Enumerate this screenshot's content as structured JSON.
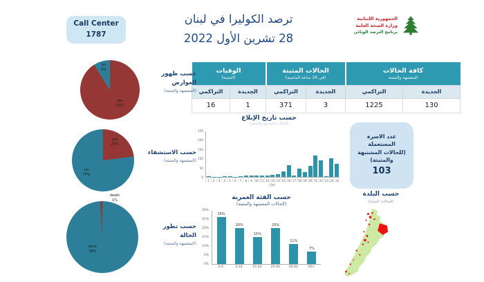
{
  "call_center": {
    "label": "Call Center",
    "number": "1787"
  },
  "title": {
    "line1": "ترصد الكوليرا في لبنان",
    "line2": "28 تشرين الأول 2022"
  },
  "logo": {
    "line1": "الجمهورية اللبنانية",
    "line2": "وزارة الصحة العامة",
    "line3": "برنامج الترصد الوبائي"
  },
  "summary_table": {
    "new_label": "الجديدة",
    "cum_label": "التراكمي",
    "groups": [
      {
        "title": "كافة الحالات",
        "subtitle": "المشتبهة والمثبتة",
        "new": "130",
        "cumulative": "1225"
      },
      {
        "title": "الحالات المثبتة",
        "subtitle": "(في 24 ساعة الماضية)",
        "new": "3",
        "cumulative": "371"
      },
      {
        "title": "الوفيات",
        "subtitle": "(المثبتة)",
        "new": "1",
        "cumulative": "16"
      }
    ]
  },
  "beds_box": {
    "line1": "عدد الاسرة",
    "line2": "المستعملة",
    "line3": "(للحالات المشتبهة",
    "line4": "والمثبتة)",
    "value": "103"
  },
  "map_section": {
    "title": "حسب البلدة",
    "subtitle": "(للحالات المثبتة)"
  },
  "colors": {
    "teal_header": "#2d9ab1",
    "bar_teal": "#2e93a9",
    "pie_red": "#953734",
    "pie_teal": "#2d7f99",
    "navy": "#1f4577",
    "light_blue_box": "#cfe7f3",
    "map_green": "#cdeaa5",
    "map_red": "#ee1111"
  },
  "chart_data": [
    {
      "type": "pie",
      "title": "حسب ظهور العوارض",
      "title_line1": "حسب ظهور",
      "title_line2": "العوارض",
      "subtitle": "(المشتبهة والمثبتة)",
      "slices": [
        {
          "label": "yes",
          "pct": 91,
          "color": "#953734",
          "text": "yes\n91%"
        },
        {
          "label": "no",
          "pct": 9,
          "color": "#2d7f99",
          "text": "no\n9%"
        }
      ]
    },
    {
      "type": "pie",
      "title": "حسب الاستشفاء",
      "subtitle": "(المشتبهة والمثبتة)",
      "slices": [
        {
          "label": "yes",
          "pct": 23,
          "color": "#953734",
          "text": "yes\n23%"
        },
        {
          "label": "no",
          "pct": 77,
          "color": "#2d7f99",
          "text": "no\n77%"
        }
      ]
    },
    {
      "type": "pie",
      "title": "حسب تطور الحالة",
      "title_line1": "حسب تطور",
      "title_line2": "الحالة",
      "subtitle": "(المشتبهة والمثبتة)",
      "slices": [
        {
          "label": "alive",
          "pct": 99,
          "color": "#2d7f99",
          "text": "alive\n99%"
        },
        {
          "label": "death",
          "pct": 1,
          "color": "#953734",
          "text": "death\n1%"
        }
      ]
    },
    {
      "type": "bar",
      "title": "حسب تاريخ الإبلاغ",
      "subtitle": "(الحالات المشتبهة والمثبتة)",
      "x": [
        1,
        2,
        3,
        4,
        5,
        6,
        7,
        8,
        9,
        10,
        11,
        12,
        13,
        14,
        15,
        16,
        17,
        18,
        19,
        20,
        21,
        22,
        23,
        24,
        25
      ],
      "xlabel": "Oct",
      "values": [
        2,
        1,
        1,
        2,
        4,
        1,
        3,
        8,
        8,
        8,
        8,
        9,
        11,
        15,
        30,
        63,
        8,
        44,
        25,
        60,
        115,
        90,
        5,
        100,
        72
      ],
      "ylim": [
        0,
        250
      ],
      "ytick": 50
    },
    {
      "type": "bar",
      "title": "حسب الفئة العمرية",
      "subtitle": "(الحالات المشتبهة والمثبتة)",
      "categories": [
        "0-4",
        "5-14",
        "15-24",
        "25-44",
        "45-64",
        "65+"
      ],
      "values": [
        26,
        20,
        15,
        20,
        11,
        7
      ],
      "unit": "%",
      "ylim": [
        0,
        30
      ],
      "ytick": 5
    }
  ]
}
